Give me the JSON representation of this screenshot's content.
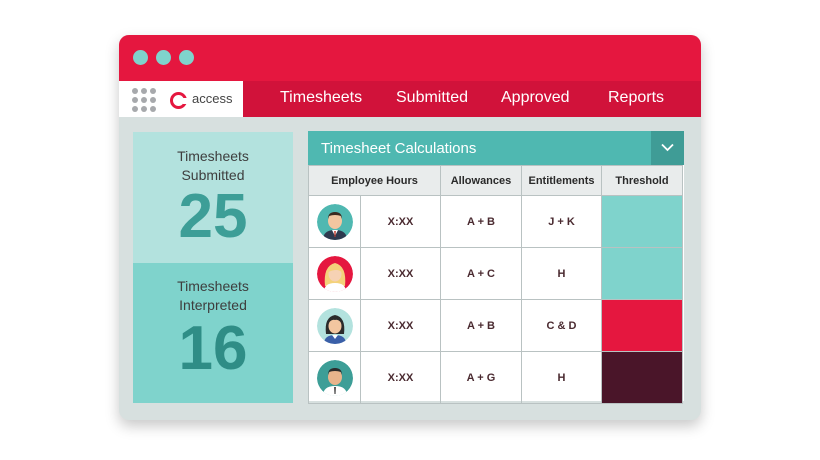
{
  "colors": {
    "brand_red": "#e5173f",
    "nav_red": "#d1123a",
    "teal": "#4fb8b1",
    "light_teal": "#7fd3cc",
    "pale_teal": "#b3e2de",
    "dark_wine": "#4a1529"
  },
  "nav": {
    "logo_text": "access",
    "items": [
      "Timesheets",
      "Submitted",
      "Approved",
      "Reports"
    ]
  },
  "stats": [
    {
      "label_line1": "Timesheets",
      "label_line2": "Submitted",
      "value": "25"
    },
    {
      "label_line1": "Timesheets",
      "label_line2": "Interpreted",
      "value": "16"
    }
  ],
  "panel": {
    "title": "Timesheet Calculations",
    "toggle_icon": "chevron-down-icon",
    "columns": [
      "Employee Hours",
      "Allowances",
      "Entitlements",
      "Threshold"
    ],
    "rows": [
      {
        "avatar": "male-avatar-tie",
        "hours": "X:XX",
        "allowances": "A + B",
        "entitlements": "J + K",
        "threshold_color": "#7fd3cc"
      },
      {
        "avatar": "female-avatar-blonde",
        "hours": "X:XX",
        "allowances": "A + C",
        "entitlements": "H",
        "threshold_color": "#7fd3cc"
      },
      {
        "avatar": "female-avatar-dark-hair",
        "hours": "X:XX",
        "allowances": "A + B",
        "entitlements": "C & D",
        "threshold_color": "#e5173f"
      },
      {
        "avatar": "male-avatar-shirt",
        "hours": "X:XX",
        "allowances": "A + G",
        "entitlements": "H",
        "threshold_color": "#4a1529"
      }
    ]
  }
}
